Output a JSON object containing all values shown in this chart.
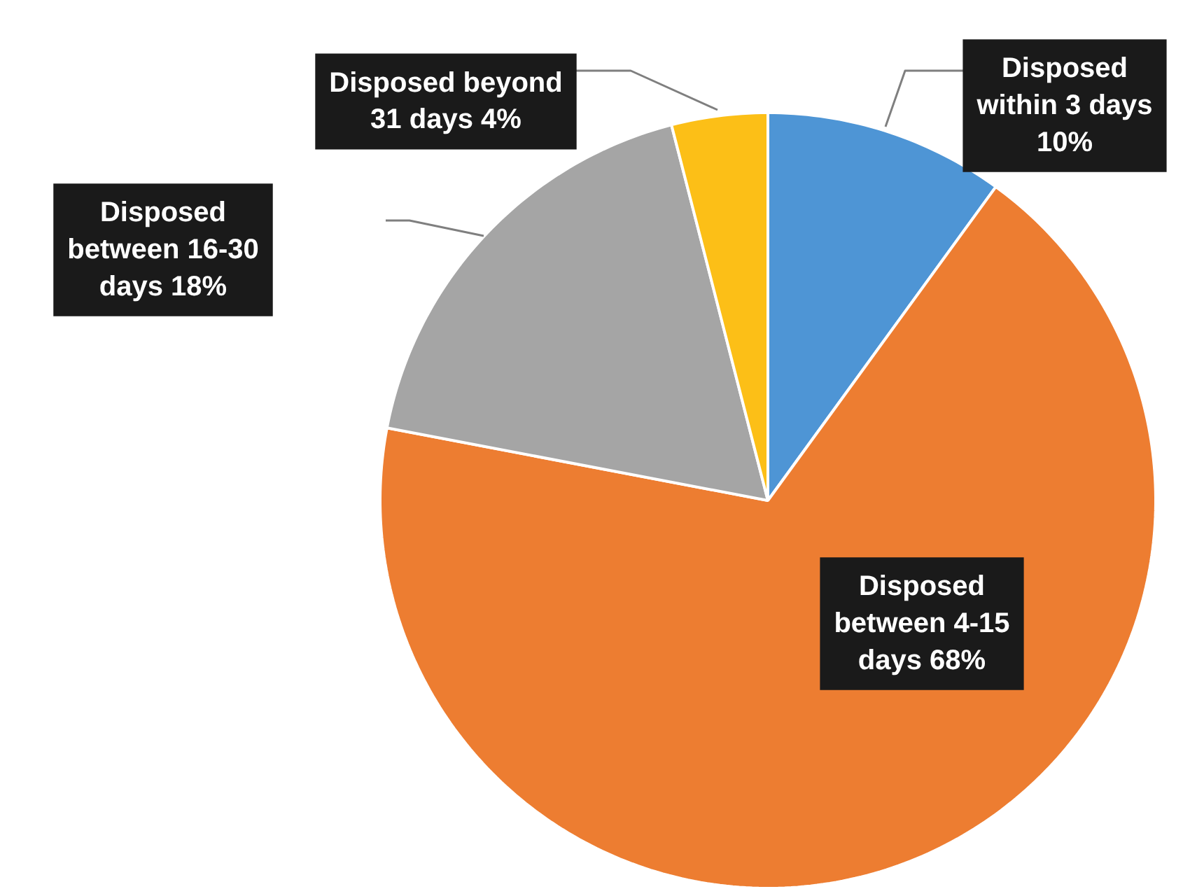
{
  "chart_data": {
    "type": "pie",
    "categories": [
      "Disposed within 3 days",
      "Disposed between 4-15 days",
      "Disposed between 16-30 days",
      "Disposed beyond 31 days"
    ],
    "values": [
      10,
      68,
      18,
      4
    ],
    "value_labels": [
      "10%",
      "68%",
      "18%",
      "4%"
    ],
    "colors": [
      "#4e95d5",
      "#ed7d31",
      "#a5a5a5",
      "#fcbf17"
    ]
  }
}
